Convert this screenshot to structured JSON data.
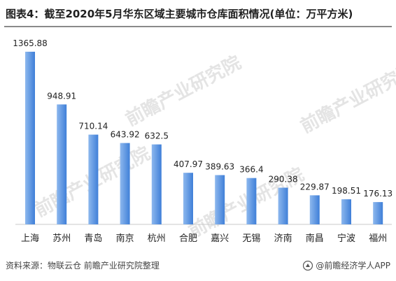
{
  "title": "图表4：截至2020年5月华东区域主要城市仓库面积情况(单位：万平方米)",
  "source": "资料来源：物联云仓 前瞻产业研究院整理",
  "brand": "@前瞻经济学人APP",
  "watermark": "前瞻产业研究院",
  "colors": {
    "bar_light": "#8db8ee",
    "bar_dark": "#3f7fd8"
  },
  "chart_data": {
    "type": "bar",
    "title": "图表4：截至2020年5月华东区域主要城市仓库面积情况(单位：万平方米)",
    "categories": [
      "上海",
      "苏州",
      "青岛",
      "南京",
      "杭州",
      "合肥",
      "嘉兴",
      "无锡",
      "济南",
      "南昌",
      "宁波",
      "福州"
    ],
    "values": [
      1365.88,
      948.91,
      710.14,
      643.92,
      632.5,
      407.97,
      389.63,
      366.4,
      290.38,
      229.87,
      198.51,
      176.13
    ],
    "value_labels": [
      "1365.88",
      "948.91",
      "710.14",
      "643.92",
      "632.5",
      "407.97",
      "389.63",
      "366.4",
      "290.38",
      "229.87",
      "198.51",
      "176.13"
    ],
    "ylim": [
      0,
      1365.88
    ],
    "grid": false,
    "legend": "none"
  }
}
